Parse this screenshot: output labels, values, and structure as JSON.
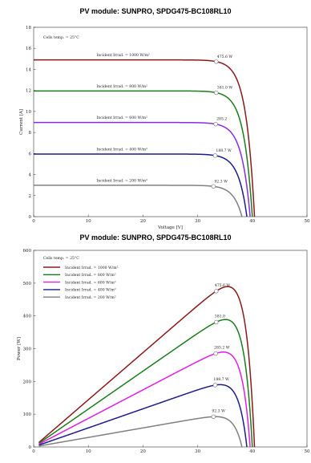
{
  "chart_data": [
    {
      "type": "line",
      "title": "PV module:  SUNPRO,  SPDG475-BC108RL10",
      "xlabel": "Voltage [V]",
      "ylabel": "Current [A]",
      "xlim": [
        0,
        50
      ],
      "ylim": [
        0,
        18
      ],
      "xticks": [
        "0",
        "10",
        "20",
        "30",
        "40",
        "50"
      ],
      "yticks": [
        "0",
        "2",
        "4",
        "6",
        "8",
        "10",
        "12",
        "14",
        "16",
        "18"
      ],
      "cell_temp_label": "Cells temp. = 25°C",
      "grid": false,
      "legend": "none",
      "series": [
        {
          "name": "Incident Irrad. = 1000 W/m²",
          "color": "#8b1a1a",
          "isc": 14.9,
          "voc": 40.4,
          "mpp_v": 33.4,
          "mpp_i": 14.25,
          "mpp_label": "475.6 W"
        },
        {
          "name": "Incident Irrad. = 800 W/m²",
          "color": "#1a7d1a",
          "isc": 11.95,
          "voc": 40.0,
          "mpp_v": 33.4,
          "mpp_i": 11.4,
          "mpp_label": "381.0 W"
        },
        {
          "name": "Incident Irrad. = 600 W/m²",
          "color": "#8a2be2",
          "isc": 8.95,
          "voc": 39.6,
          "mpp_v": 33.3,
          "mpp_i": 8.55,
          "mpp_label": "285.2"
        },
        {
          "name": "Incident Irrad. = 400 W/m²",
          "color": "#1c1c8c",
          "isc": 5.95,
          "voc": 39.0,
          "mpp_v": 33.2,
          "mpp_i": 5.7,
          "mpp_label": "188.7 W"
        },
        {
          "name": "Incident Irrad. = 200 W/m²",
          "color": "#808080",
          "isc": 2.98,
          "voc": 38.1,
          "mpp_v": 32.9,
          "mpp_i": 2.8,
          "mpp_label": "92.3 W"
        }
      ]
    },
    {
      "type": "line",
      "title": "PV module:  SUNPRO,  SPDG475-BC108RL10",
      "xlabel": "",
      "ylabel": "Power [W]",
      "xlim": [
        0,
        50
      ],
      "ylim": [
        0,
        600
      ],
      "xticks": [
        "0",
        "10",
        "20",
        "30",
        "40",
        "50"
      ],
      "yticks": [
        "0",
        "100",
        "200",
        "300",
        "400",
        "500",
        "600"
      ],
      "cell_temp_label": "Cells temp. = 25°C",
      "grid": false,
      "legend": "top-left",
      "series": [
        {
          "name": "Incident Irrad. = 1000 W/m²",
          "color": "#8b1a1a",
          "peak_v": 33.4,
          "peak_p": 475.6,
          "voc": 40.4,
          "peak_label": "475.6 W"
        },
        {
          "name": "Incident Irrad. = 800 W/m²",
          "color": "#1a7d1a",
          "peak_v": 33.4,
          "peak_p": 381.0,
          "voc": 40.0,
          "peak_label": "381.0"
        },
        {
          "name": "Incident Irrad. = 600 W/m²",
          "color": "#e21ee2",
          "peak_v": 33.3,
          "peak_p": 285.2,
          "voc": 39.6,
          "peak_label": "285.2 W"
        },
        {
          "name": "Incident Irrad. = 400 W/m²",
          "color": "#1c1c8c",
          "peak_v": 33.2,
          "peak_p": 188.7,
          "voc": 39.0,
          "peak_label": "188.7 W"
        },
        {
          "name": "Incident Irrad. = 200 W/m²",
          "color": "#808080",
          "peak_v": 32.9,
          "peak_p": 92.3,
          "voc": 38.1,
          "peak_label": "92.3 W"
        }
      ]
    }
  ]
}
